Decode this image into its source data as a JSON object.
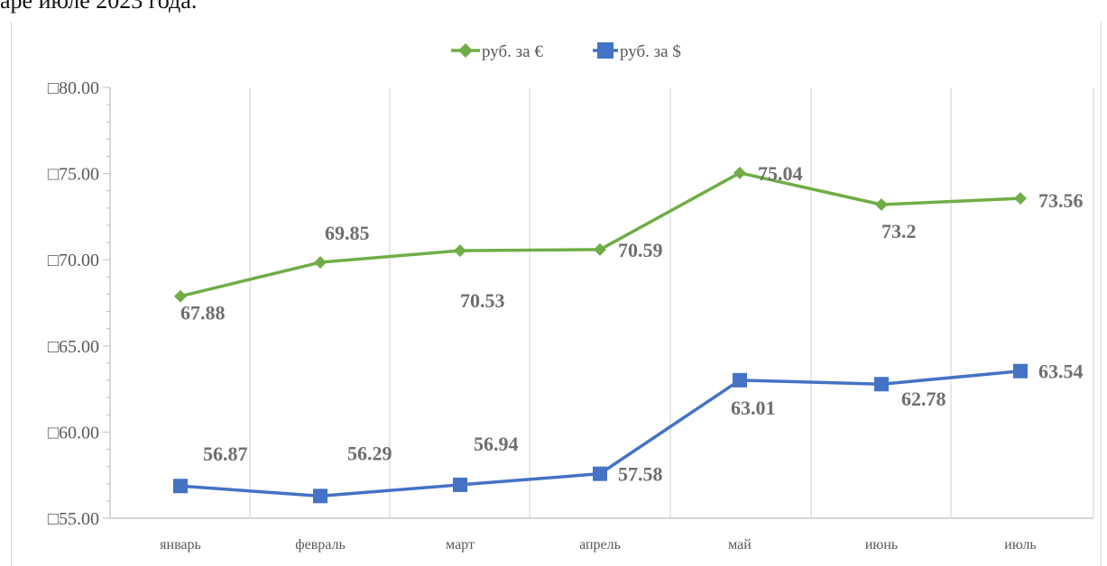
{
  "page": {
    "cropped_heading": "аре июле 2023 года."
  },
  "chart_data": {
    "type": "line",
    "title": "",
    "xlabel": "",
    "ylabel": "",
    "categories": [
      "январь",
      "февраль",
      "март",
      "апрель",
      "май",
      "июнь",
      "июль"
    ],
    "ylim": [
      55,
      80
    ],
    "yticks": [
      55,
      60,
      65,
      70,
      75,
      80
    ],
    "ytick_labels": [
      "□55.00",
      "□60.00",
      "□65.00",
      "□70.00",
      "□75.00",
      "□80.00"
    ],
    "grid": "vertical",
    "legend": "top-center",
    "series": [
      {
        "name": "руб. за €",
        "marker": "diamond",
        "color": "#70ad47",
        "values": [
          67.88,
          69.85,
          70.53,
          70.59,
          75.04,
          73.2,
          73.56
        ],
        "labels": [
          "67.88",
          "69.85",
          "70.53",
          "70.59",
          "75.04",
          "73.2",
          "73.56"
        ]
      },
      {
        "name": "руб. за $",
        "marker": "square",
        "color": "#4472c4",
        "values": [
          56.87,
          56.29,
          56.94,
          57.58,
          63.01,
          62.78,
          63.54
        ],
        "labels": [
          "56.87",
          "56.29",
          "56.94",
          "57.58",
          "63.01",
          "62.78",
          "63.54"
        ]
      }
    ]
  }
}
